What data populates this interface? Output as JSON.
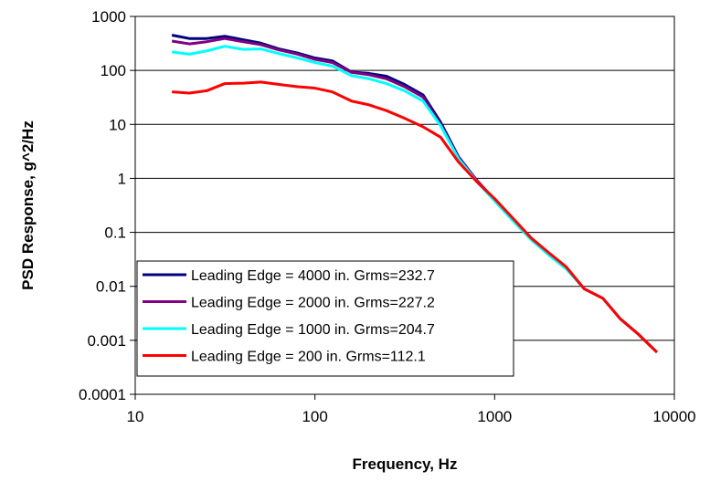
{
  "chart_data": {
    "type": "line",
    "xlabel": "Frequency, Hz",
    "ylabel": "PSD Response, g^2/Hz",
    "xscale": "log",
    "yscale": "log",
    "xlim": [
      10,
      10000
    ],
    "ylim": [
      0.0001,
      1000
    ],
    "xticks": [
      "10",
      "100",
      "1000",
      "10000"
    ],
    "yticks": [
      "0.0001",
      "0.001",
      "0.01",
      "0.1",
      "1",
      "10",
      "100",
      "1000"
    ],
    "grid": "horizontal major gridlines",
    "legend_position": "bottom-left",
    "series": [
      {
        "name": "Leading Edge = 4000 in. Grms=232.7",
        "color": "#000080",
        "x": [
          16,
          20,
          25,
          31.5,
          40,
          50,
          63,
          80,
          100,
          125,
          160,
          200,
          250,
          315,
          400,
          500,
          630,
          800,
          1000,
          1250,
          1600,
          2000,
          2500,
          3150,
          4000,
          5000,
          6300,
          8000
        ],
        "y": [
          450,
          390,
          390,
          430,
          370,
          320,
          250,
          210,
          170,
          150,
          93,
          88,
          78,
          55,
          35,
          11,
          2.5,
          0.9,
          0.4,
          0.18,
          0.075,
          0.04,
          0.022,
          0.009,
          0.006,
          0.0025,
          0.0013,
          0.0006
        ]
      },
      {
        "name": "Leading Edge = 2000 in. Grms=227.2",
        "color": "#800080",
        "x": [
          16,
          20,
          25,
          31.5,
          40,
          50,
          63,
          80,
          100,
          125,
          160,
          200,
          250,
          315,
          400,
          500,
          630,
          800,
          1000,
          1250,
          1600,
          2000,
          2500,
          3150,
          4000,
          5000,
          6300,
          8000
        ],
        "y": [
          350,
          310,
          340,
          390,
          340,
          300,
          240,
          200,
          160,
          140,
          92,
          83,
          70,
          50,
          32,
          10,
          2.4,
          0.9,
          0.4,
          0.18,
          0.075,
          0.04,
          0.022,
          0.009,
          0.006,
          0.0025,
          0.0013,
          0.0006
        ]
      },
      {
        "name": "Leading Edge = 1000 in. Grms=204.7",
        "color": "#00FFFF",
        "x": [
          16,
          20,
          25,
          31.5,
          40,
          50,
          63,
          80,
          100,
          125,
          160,
          200,
          250,
          315,
          400,
          500,
          630,
          800,
          1000,
          1250,
          1600,
          2000,
          2500,
          3150,
          4000,
          5000,
          6300,
          8000
        ],
        "y": [
          220,
          200,
          230,
          280,
          245,
          250,
          205,
          170,
          140,
          120,
          80,
          70,
          57,
          42,
          27,
          9.5,
          2.3,
          0.85,
          0.38,
          0.17,
          0.072,
          0.038,
          0.021,
          0.009,
          0.006,
          0.0025,
          0.0013,
          0.0006
        ]
      },
      {
        "name": "Leading Edge = 200 in. Grms=112.1",
        "color": "#FF0000",
        "x": [
          16,
          20,
          25,
          31.5,
          40,
          50,
          63,
          80,
          100,
          125,
          160,
          200,
          250,
          315,
          400,
          500,
          630,
          800,
          1000,
          1250,
          1600,
          2000,
          2500,
          3150,
          4000,
          5000,
          6300,
          8000
        ],
        "y": [
          40,
          38,
          42,
          57,
          58,
          61,
          55,
          50,
          47,
          40,
          27,
          23,
          18,
          13,
          9,
          5.8,
          2.0,
          0.85,
          0.42,
          0.19,
          0.078,
          0.042,
          0.023,
          0.009,
          0.006,
          0.0025,
          0.0013,
          0.0006
        ]
      }
    ]
  }
}
